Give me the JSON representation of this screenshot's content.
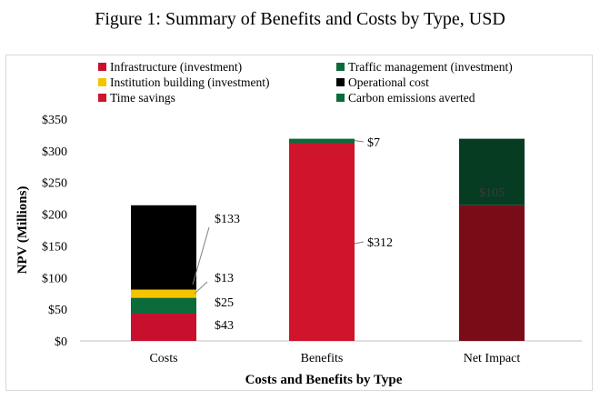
{
  "figure_title": "Figure 1: Summary of Benefits and Costs by Type, USD",
  "colors": {
    "infrastructure": "#c8102e",
    "traffic": "#0b6b3a",
    "institution": "#f5c400",
    "operational": "#000000",
    "time_savings": "#d0142c",
    "carbon": "#064a2a",
    "net_time": "#7a0c18",
    "net_carbon": "#063d22"
  },
  "legend": [
    {
      "label": "Infrastructure (investment)",
      "color": "#c8102e"
    },
    {
      "label": "Traffic management (investment)",
      "color": "#0b6b3a"
    },
    {
      "label": "Institution building (investment)",
      "color": "#f5c400"
    },
    {
      "label": "Operational cost",
      "color": "#000000"
    },
    {
      "label": "Time savings",
      "color": "#d0142c"
    },
    {
      "label": "Carbon emissions averted",
      "color": "#0b6b3a"
    }
  ],
  "chart_data": {
    "type": "bar",
    "stacked": true,
    "categories": [
      "Costs",
      "Benefits",
      "Net Impact"
    ],
    "xlabel": "Costs and Benefits by Type",
    "ylabel": "NPV (Millions)",
    "ylim": [
      0,
      350
    ],
    "yticks": [
      0,
      50,
      100,
      150,
      200,
      250,
      300,
      350
    ],
    "ytick_labels": [
      "$0",
      "$50",
      "$100",
      "$150",
      "$200",
      "$250",
      "$300",
      "$350"
    ],
    "grid": false,
    "legend_position": "top",
    "stacks": [
      {
        "category": "Costs",
        "segments": [
          {
            "name": "Infrastructure (investment)",
            "value": 43,
            "label": "$43",
            "color": "#c8102e"
          },
          {
            "name": "Traffic management (investment)",
            "value": 25,
            "label": "$25",
            "color": "#0b6b3a"
          },
          {
            "name": "Institution building (investment)",
            "value": 13,
            "label": "$13",
            "color": "#f5c400"
          },
          {
            "name": "Operational cost",
            "value": 133,
            "label": "$133",
            "color": "#000000"
          }
        ]
      },
      {
        "category": "Benefits",
        "segments": [
          {
            "name": "Time savings",
            "value": 312,
            "label": "$312",
            "color": "#d0142c"
          },
          {
            "name": "Carbon emissions averted",
            "value": 7,
            "label": "$7",
            "color": "#0b6b3a"
          }
        ]
      },
      {
        "category": "Net Impact",
        "segments": [
          {
            "name": "Net Impact",
            "value": 214,
            "label": "",
            "color": "#7a0c18"
          },
          {
            "name": "Net Impact",
            "value": 105,
            "label": "$105",
            "color": "#063d22"
          }
        ]
      }
    ]
  }
}
